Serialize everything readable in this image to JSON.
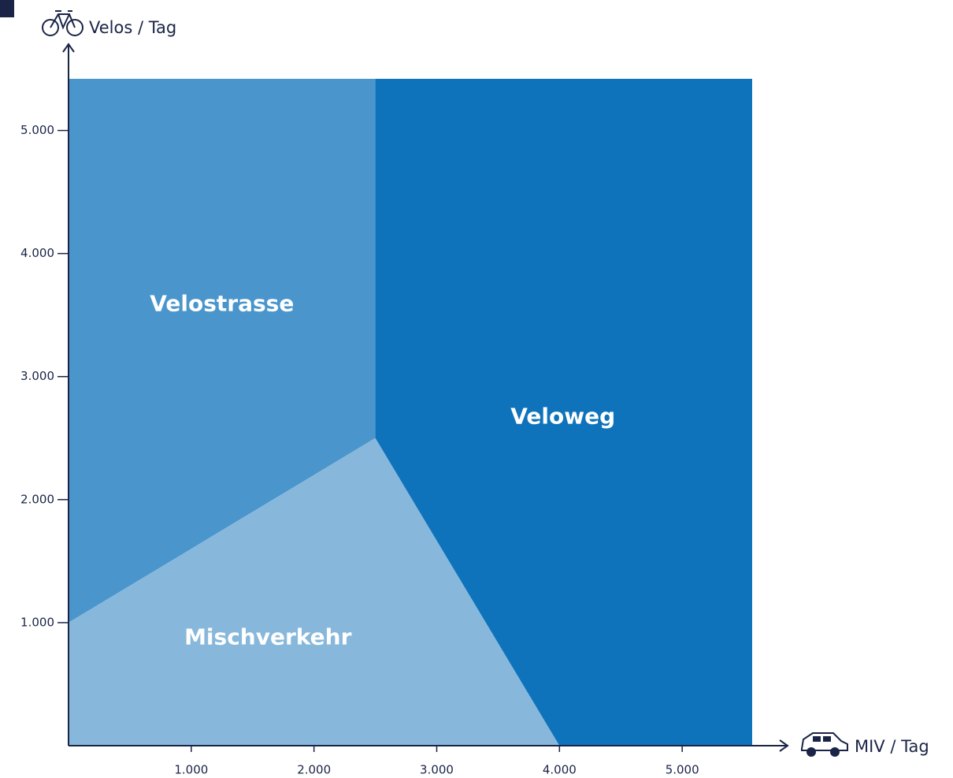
{
  "chart_data": {
    "type": "region",
    "x_label": "MIV / Tag",
    "y_label": "Velos / Tag",
    "xlim": [
      0,
      5570
    ],
    "ylim": [
      0,
      5420
    ],
    "xticks": [
      {
        "value": 1000,
        "label": "1.000"
      },
      {
        "value": 2000,
        "label": "2.000"
      },
      {
        "value": 3000,
        "label": "3.000"
      },
      {
        "value": 4000,
        "label": "4.000"
      },
      {
        "value": 5000,
        "label": "5.000"
      }
    ],
    "yticks": [
      {
        "value": 1000,
        "label": "1.000"
      },
      {
        "value": 2000,
        "label": "2.000"
      },
      {
        "value": 3000,
        "label": "3.000"
      },
      {
        "value": 4000,
        "label": "4.000"
      },
      {
        "value": 5000,
        "label": "5.000"
      }
    ],
    "regions": [
      {
        "name": "Velostrasse",
        "color": "#4a96cc",
        "x": [
          0,
          0,
          2500,
          2500
        ],
        "y": [
          1000,
          5420,
          5420,
          2500
        ]
      },
      {
        "name": "Mischverkehr",
        "color": "#87b8dc",
        "x": [
          0,
          0,
          2500,
          4000
        ],
        "y": [
          0,
          1000,
          2500,
          0
        ]
      },
      {
        "name": "Veloweg",
        "color": "#0e73bb",
        "x": [
          2500,
          5570,
          5570,
          4000,
          2500
        ],
        "y": [
          5420,
          5420,
          0,
          0,
          2500
        ]
      }
    ]
  }
}
